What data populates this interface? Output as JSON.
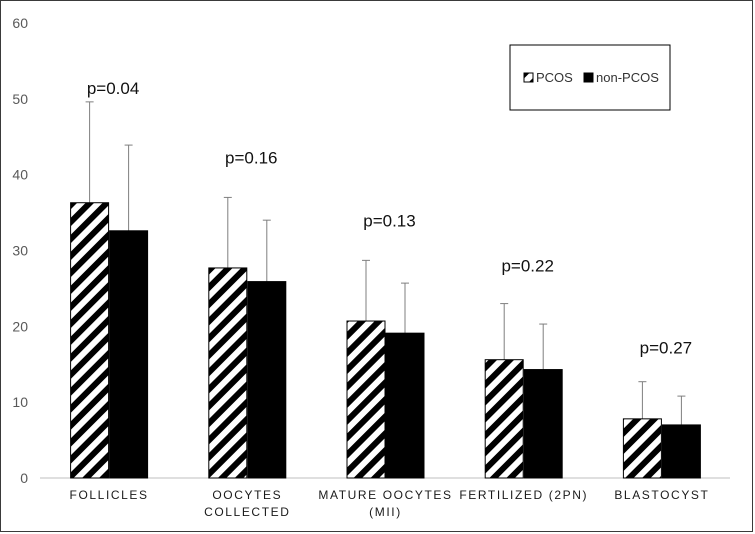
{
  "chart_data": {
    "type": "bar",
    "title": "",
    "xlabel": "",
    "ylabel": "",
    "ylim": [
      0,
      60
    ],
    "yticks": [
      0,
      10,
      20,
      30,
      40,
      50,
      60
    ],
    "grid": false,
    "legend_position": "top-right",
    "categories": [
      [
        "FOLLICLES"
      ],
      [
        "OOCYTES",
        "COLLECTED"
      ],
      [
        "MATURE OOCYTES",
        "(MII)"
      ],
      [
        "FERTILIZED (2PN)"
      ],
      [
        "BLASTOCYST"
      ]
    ],
    "series": [
      {
        "name": "PCOS",
        "pattern": "diagonal-hatch",
        "color": "#000000",
        "values": [
          36.3,
          27.7,
          20.7,
          15.6,
          7.8
        ],
        "error_upper": [
          49.6,
          37.0,
          28.7,
          23.0,
          12.7
        ]
      },
      {
        "name": "non-PCOS",
        "pattern": "solid",
        "color": "#000000",
        "values": [
          32.6,
          25.9,
          19.1,
          14.3,
          7.0
        ],
        "error_upper": [
          43.9,
          34.0,
          25.7,
          20.3,
          10.8
        ]
      }
    ],
    "annotations": [
      "p=0.04",
      "p=0.16",
      "p=0.13",
      "p=0.22",
      "p=0.27"
    ]
  }
}
